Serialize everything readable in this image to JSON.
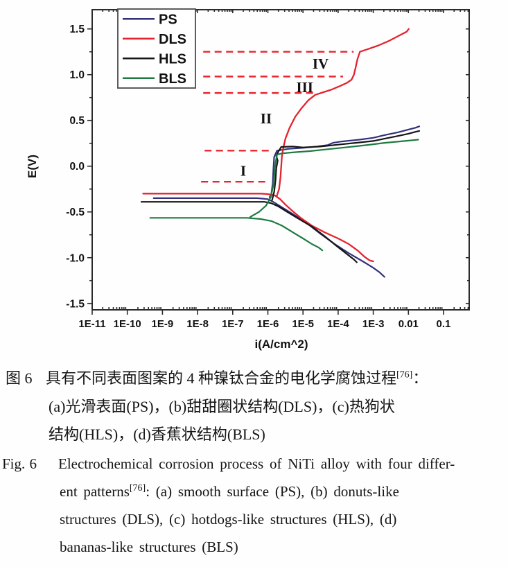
{
  "captions": {
    "chinese": {
      "label": "图 6",
      "line1_pre": "具有不同表面图案的 4 种镍钛合金的电化学腐蚀过程",
      "line1_sup": "[76]",
      "line1_post": "：",
      "line2": "(a)光滑表面(PS)，(b)甜甜圈状结构(DLS)，(c)热狗状",
      "line3": "结构(HLS)，(d)香蕉状结构(BLS)"
    },
    "english": {
      "label": "Fig. 6",
      "line1": "Electrochemical corrosion process of NiTi alloy with four differ-",
      "line2_pre": "ent patterns",
      "line2_sup": "[76]",
      "line2_post": ": (a) smooth surface (PS), (b) donuts-like",
      "line3": "structures (DLS), (c) hotdogs-like structures (HLS), (d)",
      "line4": "bananas-like structures (BLS)"
    }
  },
  "chart_data": {
    "type": "line",
    "title": "",
    "xlabel": "i(A/cm^2)",
    "ylabel": "E(V)",
    "x_scale": "log10",
    "xlim_log": [
      -11,
      -0.27
    ],
    "ylim": [
      -1.57,
      1.71
    ],
    "grid": false,
    "frame_color": "#2b2b2b",
    "dashed_color": "#e8252e",
    "x_ticks": [
      {
        "label": "1E-11",
        "log": -11
      },
      {
        "label": "1E-10",
        "log": -10
      },
      {
        "label": "1E-9",
        "log": -9
      },
      {
        "label": "1E-8",
        "log": -8
      },
      {
        "label": "1E-7",
        "log": -7
      },
      {
        "label": "1E-6",
        "log": -6
      },
      {
        "label": "1E-5",
        "log": -5
      },
      {
        "label": "1E-4",
        "log": -4
      },
      {
        "label": "1E-3",
        "log": -3
      },
      {
        "label": "0.01",
        "log": -2
      },
      {
        "label": "0.1",
        "log": -1
      }
    ],
    "y_ticks": [
      {
        "label": "1.5",
        "value": 1.5
      },
      {
        "label": "1.0",
        "value": 1.0
      },
      {
        "label": "0.5",
        "value": 0.5
      },
      {
        "label": "0.0",
        "value": 0.0
      },
      {
        "label": "-0.5",
        "value": -0.5
      },
      {
        "label": "-1.0",
        "value": -1.0
      },
      {
        "label": "-1.5",
        "value": -1.5
      }
    ],
    "legend": {
      "position": "top-left",
      "entries": [
        {
          "label": "PS",
          "color": "#31317a"
        },
        {
          "label": "DLS",
          "color": "#e32330"
        },
        {
          "label": "HLS",
          "color": "#161616"
        },
        {
          "label": "BLS",
          "color": "#1f7a41"
        }
      ]
    },
    "estimated_corrosion_potentials_V": {
      "PS": -0.35,
      "DLS": -0.3,
      "HLS": -0.39,
      "BLS": -0.57
    },
    "series": [
      {
        "name": "PS",
        "color": "#31317a",
        "width": 2.2,
        "branches": [
          {
            "id": "plateau-cathodic",
            "points": [
              [
                -9.25,
                -0.35
              ],
              [
                -6.3,
                -0.35
              ],
              [
                -6.0,
                -0.36
              ],
              [
                -5.85,
                -0.39
              ],
              [
                -5.6,
                -0.45
              ],
              [
                -5.3,
                -0.52
              ],
              [
                -4.9,
                -0.62
              ],
              [
                -4.5,
                -0.74
              ],
              [
                -4.1,
                -0.85
              ],
              [
                -3.7,
                -0.95
              ],
              [
                -3.3,
                -1.04
              ],
              [
                -3.0,
                -1.11
              ],
              [
                -2.82,
                -1.16
              ],
              [
                -2.68,
                -1.21
              ]
            ]
          },
          {
            "id": "anodic",
            "points": [
              [
                -5.95,
                -0.34
              ],
              [
                -5.9,
                -0.3
              ],
              [
                -5.86,
                -0.18
              ],
              [
                -5.84,
                -0.02
              ],
              [
                -5.82,
                0.1
              ],
              [
                -5.74,
                0.17
              ],
              [
                -5.4,
                0.19
              ],
              [
                -5.0,
                0.2
              ],
              [
                -4.6,
                0.215
              ],
              [
                -4.3,
                0.23
              ],
              [
                -4.15,
                0.255
              ],
              [
                -3.9,
                0.27
              ],
              [
                -3.4,
                0.29
              ],
              [
                -3.0,
                0.31
              ],
              [
                -2.68,
                0.34
              ],
              [
                -2.3,
                0.37
              ],
              [
                -2.0,
                0.4
              ],
              [
                -1.8,
                0.42
              ],
              [
                -1.69,
                0.435
              ]
            ]
          }
        ]
      },
      {
        "name": "DLS",
        "color": "#e32330",
        "width": 2.3,
        "branches": [
          {
            "id": "plateau-cathodic",
            "points": [
              [
                -9.55,
                -0.3
              ],
              [
                -6.2,
                -0.3
              ],
              [
                -6.0,
                -0.305
              ],
              [
                -5.8,
                -0.32
              ],
              [
                -5.65,
                -0.36
              ],
              [
                -5.5,
                -0.42
              ],
              [
                -5.3,
                -0.49
              ],
              [
                -5.05,
                -0.57
              ],
              [
                -4.75,
                -0.65
              ],
              [
                -4.4,
                -0.72
              ],
              [
                -4.0,
                -0.79
              ],
              [
                -3.7,
                -0.85
              ],
              [
                -3.45,
                -0.92
              ],
              [
                -3.25,
                -0.99
              ],
              [
                -3.1,
                -1.03
              ],
              [
                -3.0,
                -1.04
              ]
            ]
          },
          {
            "id": "anodic",
            "points": [
              [
                -5.75,
                -0.33
              ],
              [
                -5.68,
                -0.25
              ],
              [
                -5.64,
                -0.12
              ],
              [
                -5.62,
                0.0
              ],
              [
                -5.6,
                0.11
              ],
              [
                -5.56,
                0.2
              ],
              [
                -5.5,
                0.3
              ],
              [
                -5.38,
                0.42
              ],
              [
                -5.22,
                0.54
              ],
              [
                -5.05,
                0.63
              ],
              [
                -4.85,
                0.72
              ],
              [
                -4.65,
                0.78
              ],
              [
                -4.45,
                0.805
              ],
              [
                -4.2,
                0.835
              ],
              [
                -3.95,
                0.875
              ],
              [
                -3.75,
                0.91
              ],
              [
                -3.62,
                0.945
              ],
              [
                -3.55,
                1.0
              ],
              [
                -3.5,
                1.08
              ],
              [
                -3.45,
                1.17
              ],
              [
                -3.38,
                1.25
              ],
              [
                -3.15,
                1.28
              ],
              [
                -2.85,
                1.32
              ],
              [
                -2.55,
                1.37
              ],
              [
                -2.25,
                1.43
              ],
              [
                -2.05,
                1.47
              ],
              [
                -1.99,
                1.5
              ]
            ]
          }
        ]
      },
      {
        "name": "HLS",
        "color": "#161616",
        "width": 2.2,
        "branches": [
          {
            "id": "plateau-cathodic",
            "points": [
              [
                -9.6,
                -0.39
              ],
              [
                -6.1,
                -0.39
              ],
              [
                -5.9,
                -0.405
              ],
              [
                -5.7,
                -0.44
              ],
              [
                -5.45,
                -0.5
              ],
              [
                -5.1,
                -0.58
              ],
              [
                -4.75,
                -0.66
              ],
              [
                -4.4,
                -0.76
              ],
              [
                -4.05,
                -0.87
              ],
              [
                -3.75,
                -0.96
              ],
              [
                -3.55,
                -1.02
              ],
              [
                -3.47,
                -1.05
              ]
            ]
          },
          {
            "id": "anodic",
            "points": [
              [
                -5.88,
                -0.37
              ],
              [
                -5.82,
                -0.28
              ],
              [
                -5.78,
                -0.15
              ],
              [
                -5.76,
                -0.02
              ],
              [
                -5.72,
                0.06
              ],
              [
                -5.76,
                0.11
              ],
              [
                -5.7,
                0.16
              ],
              [
                -5.62,
                0.21
              ],
              [
                -5.3,
                0.215
              ],
              [
                -5.0,
                0.205
              ],
              [
                -4.5,
                0.215
              ],
              [
                -4.0,
                0.235
              ],
              [
                -3.5,
                0.255
              ],
              [
                -3.0,
                0.275
              ],
              [
                -2.68,
                0.3
              ],
              [
                -2.3,
                0.33
              ],
              [
                -2.0,
                0.355
              ],
              [
                -1.8,
                0.375
              ],
              [
                -1.69,
                0.385
              ]
            ]
          }
        ]
      },
      {
        "name": "BLS",
        "color": "#1f7a41",
        "width": 2.2,
        "branches": [
          {
            "id": "plateau-cathodic",
            "points": [
              [
                -9.35,
                -0.565
              ],
              [
                -6.6,
                -0.565
              ],
              [
                -6.2,
                -0.578
              ],
              [
                -5.9,
                -0.6
              ],
              [
                -5.6,
                -0.65
              ],
              [
                -5.3,
                -0.72
              ],
              [
                -5.0,
                -0.79
              ],
              [
                -4.75,
                -0.85
              ],
              [
                -4.55,
                -0.89
              ],
              [
                -4.45,
                -0.92
              ]
            ]
          },
          {
            "id": "anodic",
            "points": [
              [
                -6.5,
                -0.555
              ],
              [
                -6.25,
                -0.5
              ],
              [
                -6.05,
                -0.43
              ],
              [
                -5.92,
                -0.34
              ],
              [
                -5.85,
                -0.22
              ],
              [
                -5.81,
                -0.08
              ],
              [
                -5.78,
                0.04
              ],
              [
                -5.74,
                0.125
              ],
              [
                -5.6,
                0.14
              ],
              [
                -5.3,
                0.15
              ],
              [
                -4.8,
                0.165
              ],
              [
                -4.3,
                0.185
              ],
              [
                -3.8,
                0.205
              ],
              [
                -3.2,
                0.23
              ],
              [
                -2.68,
                0.255
              ],
              [
                -2.1,
                0.275
              ],
              [
                -1.72,
                0.29
              ]
            ]
          }
        ]
      }
    ],
    "annotations": {
      "dashed_lines": [
        {
          "E": 1.25,
          "from": -7.84,
          "to": -3.56
        },
        {
          "E": 0.98,
          "from": -7.84,
          "to": -3.86
        },
        {
          "E": 0.8,
          "from": -7.84,
          "to": -4.61
        },
        {
          "E": 0.17,
          "from": -7.8,
          "to": -5.95
        },
        {
          "E": -0.17,
          "from": -7.9,
          "to": -5.95
        }
      ],
      "region_labels": [
        {
          "text": "I",
          "log_i": -6.7,
          "E": -0.05
        },
        {
          "text": "II",
          "log_i": -6.05,
          "E": 0.52
        },
        {
          "text": "III",
          "log_i": -4.95,
          "E": 0.86
        },
        {
          "text": "IV",
          "log_i": -4.5,
          "E": 1.12
        }
      ]
    }
  }
}
